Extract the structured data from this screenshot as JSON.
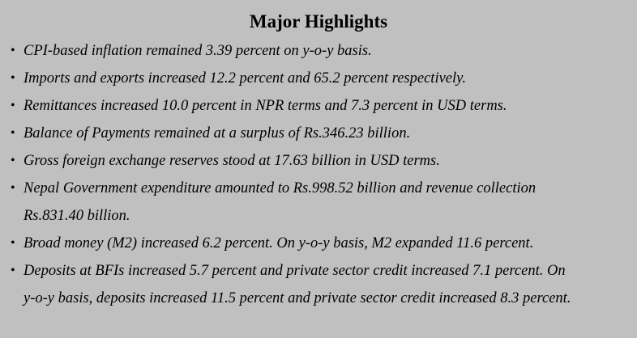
{
  "title": "Major Highlights",
  "bullet_glyph": "•",
  "items": [
    {
      "lines": [
        "CPI-based inflation remained 3.39 percent on y-o-y basis."
      ]
    },
    {
      "lines": [
        "Imports and exports increased 12.2 percent and 65.2 percent respectively."
      ]
    },
    {
      "lines": [
        "Remittances increased 10.0 percent in NPR terms and 7.3 percent in USD terms."
      ]
    },
    {
      "lines": [
        "Balance of Payments remained at a surplus of Rs.346.23 billion."
      ]
    },
    {
      "lines": [
        "Gross foreign exchange reserves stood at 17.63 billion in USD terms."
      ]
    },
    {
      "lines": [
        "Nepal Government expenditure amounted to Rs.998.52 billion and revenue collection",
        "Rs.831.40 billion."
      ]
    },
    {
      "lines": [
        "Broad money (M2) increased 6.2 percent. On y-o-y basis, M2 expanded 11.6 percent."
      ]
    },
    {
      "lines": [
        "Deposits at BFIs increased 5.7 percent and private sector credit increased 7.1 percent. On",
        "y-o-y basis, deposits increased 11.5 percent and private sector credit increased 8.3 percent."
      ]
    }
  ]
}
